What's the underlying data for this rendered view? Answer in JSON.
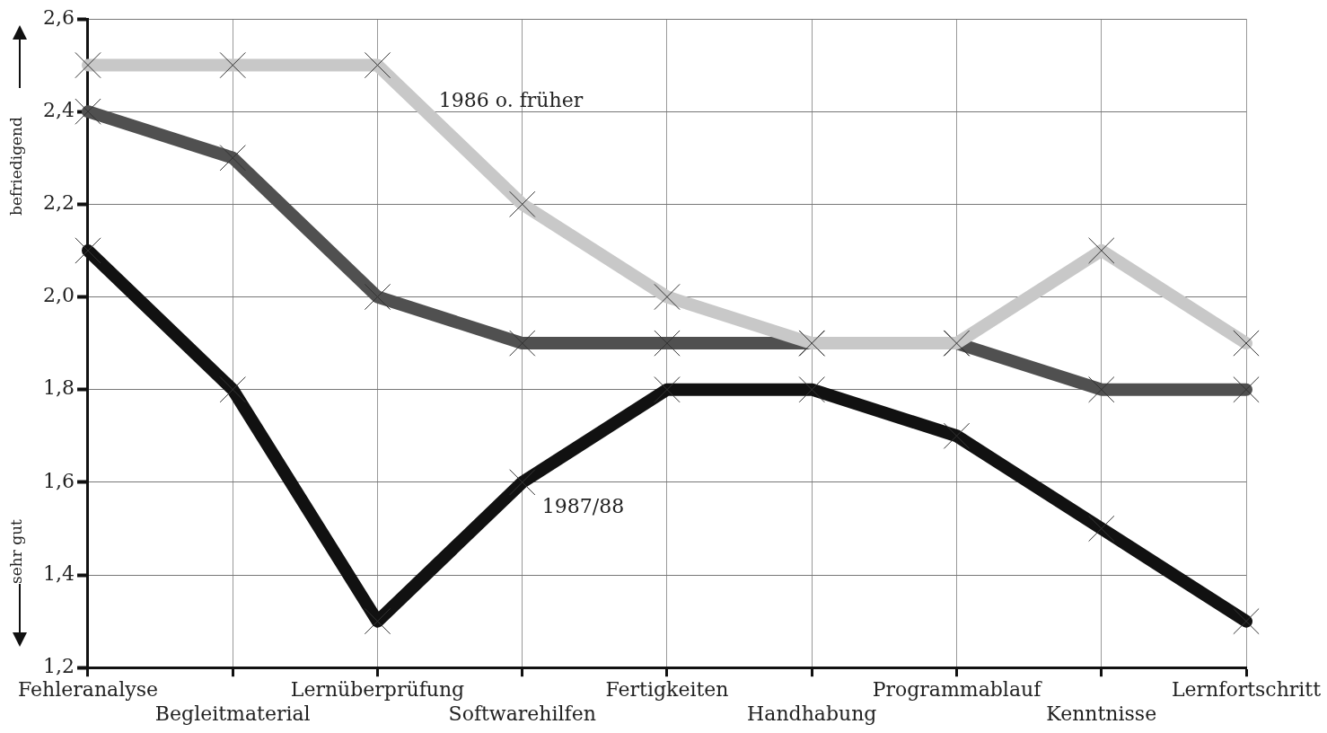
{
  "chart_data": {
    "type": "line",
    "categories": [
      "Fehleranalyse",
      "Begleitmaterial",
      "Lernüberprüfung",
      "Softwarehilfen",
      "Fertigkeiten",
      "Handhabung",
      "Programmablauf",
      "Kenntnisse",
      "Lernfortschritt"
    ],
    "series": [
      {
        "name": "1986 o. früher",
        "color": "#c8c8c8",
        "values": [
          2.5,
          2.5,
          2.5,
          2.2,
          2.0,
          1.9,
          1.9,
          2.1,
          1.9
        ]
      },
      {
        "color": "#505050",
        "values": [
          2.4,
          2.3,
          2.0,
          1.9,
          1.9,
          1.9,
          1.9,
          1.8,
          1.8
        ]
      },
      {
        "name": "1987/88",
        "color": "#111111",
        "values": [
          2.1,
          1.8,
          1.3,
          1.6,
          1.8,
          1.8,
          1.7,
          1.5,
          1.3
        ]
      }
    ],
    "ylim": [
      1.2,
      2.6
    ],
    "yticks": [
      {
        "value": 1.2,
        "label": "1,2"
      },
      {
        "value": 1.4,
        "label": "1,4"
      },
      {
        "value": 1.6,
        "label": "1,6"
      },
      {
        "value": 1.8,
        "label": "1,8"
      },
      {
        "value": 2.0,
        "label": "2,0"
      },
      {
        "value": 2.2,
        "label": "2,2"
      },
      {
        "value": 2.4,
        "label": "2,4"
      },
      {
        "value": 2.6,
        "label": "2,6"
      }
    ],
    "annotations": [
      "befriedigend",
      "sehr gut"
    ],
    "grid": true,
    "legend": false,
    "marker": "cross",
    "line_style": "solid"
  }
}
